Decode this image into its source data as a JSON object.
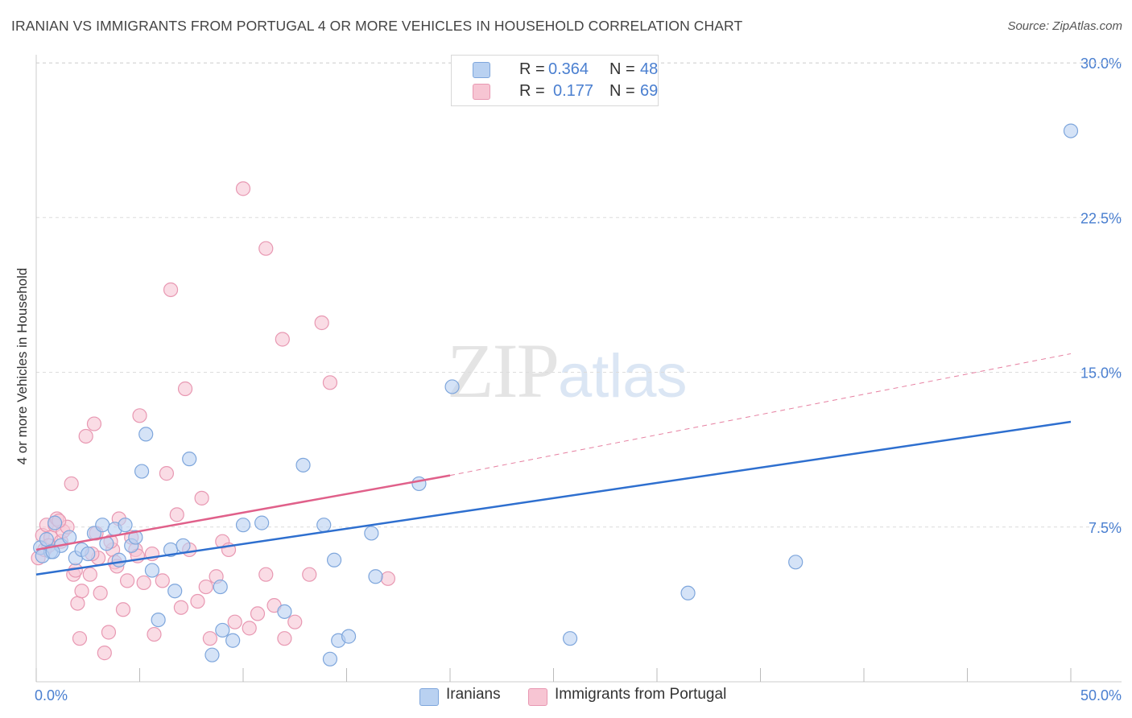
{
  "title": "IRANIAN VS IMMIGRANTS FROM PORTUGAL 4 OR MORE VEHICLES IN HOUSEHOLD CORRELATION CHART",
  "source": "Source: ZipAtlas.com",
  "watermark": {
    "zip": "ZIP",
    "atlas": "atlas"
  },
  "colors": {
    "blue_fill": "#b9d1f1",
    "blue_stroke": "#7ea6dc",
    "blue_line": "#2e6fcf",
    "pink_fill": "#f7c5d3",
    "pink_stroke": "#e898b2",
    "pink_line": "#e0608a",
    "axis_text": "#4a7fd0",
    "grid": "#dcdcdc"
  },
  "legend_top": [
    {
      "r_label": "R =",
      "r_value": "0.364",
      "n_label": "N =",
      "n_value": "48"
    },
    {
      "r_label": "R =",
      "r_value": "0.177",
      "n_label": "N =",
      "n_value": "69"
    }
  ],
  "legend_bottom": [
    {
      "label": "Iranians"
    },
    {
      "label": "Immigrants from Portugal"
    }
  ],
  "chart_data": {
    "type": "scatter",
    "title": "IRANIAN VS IMMIGRANTS FROM PORTUGAL 4 OR MORE VEHICLES IN HOUSEHOLD CORRELATION CHART",
    "xlabel": "",
    "ylabel": "4 or more Vehicles in Household",
    "xlim": [
      0,
      50
    ],
    "ylim": [
      0,
      30
    ],
    "x_tick_labels": [
      "0.0%",
      "50.0%"
    ],
    "y_tick_labels": [
      "7.5%",
      "15.0%",
      "22.5%",
      "30.0%"
    ],
    "y_ticks": [
      7.5,
      15,
      22.5,
      30
    ],
    "x_ticks": [
      0,
      5,
      10,
      15,
      20,
      25,
      30,
      35,
      40,
      45,
      50
    ],
    "grid": true,
    "series": [
      {
        "name": "Iranians",
        "r": 0.364,
        "n": 48,
        "trend": {
          "x0": 0,
          "y0": 5.2,
          "x1": 50,
          "y1": 12.6,
          "style": "solid"
        },
        "points": [
          [
            0.2,
            6.5
          ],
          [
            0.5,
            6.9
          ],
          [
            0.7,
            6.3
          ],
          [
            0.9,
            7.7
          ],
          [
            1.2,
            6.6
          ],
          [
            1.6,
            7.0
          ],
          [
            1.9,
            6.0
          ],
          [
            2.2,
            6.4
          ],
          [
            2.5,
            6.2
          ],
          [
            2.8,
            7.2
          ],
          [
            3.2,
            7.6
          ],
          [
            3.4,
            6.7
          ],
          [
            3.8,
            7.4
          ],
          [
            4.0,
            5.9
          ],
          [
            4.3,
            7.6
          ],
          [
            4.6,
            6.6
          ],
          [
            4.8,
            7.0
          ],
          [
            5.1,
            10.2
          ],
          [
            5.3,
            12.0
          ],
          [
            5.6,
            5.4
          ],
          [
            5.9,
            3.0
          ],
          [
            6.5,
            6.4
          ],
          [
            6.7,
            4.4
          ],
          [
            7.1,
            6.6
          ],
          [
            7.4,
            10.8
          ],
          [
            8.5,
            1.3
          ],
          [
            8.9,
            4.6
          ],
          [
            9.0,
            2.5
          ],
          [
            9.5,
            2.0
          ],
          [
            10.0,
            7.6
          ],
          [
            10.9,
            7.7
          ],
          [
            12.0,
            3.4
          ],
          [
            12.9,
            10.5
          ],
          [
            13.9,
            7.6
          ],
          [
            14.2,
            1.1
          ],
          [
            14.4,
            5.9
          ],
          [
            14.6,
            2.0
          ],
          [
            15.1,
            2.2
          ],
          [
            16.2,
            7.2
          ],
          [
            16.4,
            5.1
          ],
          [
            18.5,
            9.6
          ],
          [
            20.1,
            14.3
          ],
          [
            25.8,
            2.1
          ],
          [
            31.5,
            4.3
          ],
          [
            36.7,
            5.8
          ],
          [
            50.0,
            26.7
          ],
          [
            0.3,
            6.1
          ],
          [
            0.8,
            6.3
          ]
        ]
      },
      {
        "name": "Immigrants from Portugal",
        "r": 0.177,
        "n": 69,
        "trend": {
          "x0": 0,
          "y0": 6.4,
          "x1": 20,
          "y1": 10.0,
          "style": "solid",
          "dashed_to": {
            "x1": 50,
            "y1": 15.9
          }
        },
        "points": [
          [
            0.1,
            6.0
          ],
          [
            0.3,
            7.1
          ],
          [
            0.4,
            6.4
          ],
          [
            0.5,
            7.6
          ],
          [
            0.7,
            7.0
          ],
          [
            0.9,
            7.6
          ],
          [
            1.0,
            7.9
          ],
          [
            1.2,
            6.8
          ],
          [
            1.3,
            7.3
          ],
          [
            1.5,
            7.5
          ],
          [
            1.7,
            9.6
          ],
          [
            1.8,
            5.2
          ],
          [
            1.9,
            5.4
          ],
          [
            2.0,
            3.8
          ],
          [
            2.1,
            2.1
          ],
          [
            2.2,
            4.4
          ],
          [
            2.4,
            11.9
          ],
          [
            2.6,
            5.2
          ],
          [
            2.8,
            12.5
          ],
          [
            2.9,
            7.2
          ],
          [
            3.0,
            6.0
          ],
          [
            3.1,
            4.3
          ],
          [
            3.3,
            1.4
          ],
          [
            3.5,
            2.4
          ],
          [
            3.7,
            6.4
          ],
          [
            3.8,
            5.8
          ],
          [
            3.9,
            5.6
          ],
          [
            4.0,
            7.9
          ],
          [
            4.2,
            3.5
          ],
          [
            4.4,
            4.9
          ],
          [
            4.6,
            7.0
          ],
          [
            4.8,
            6.4
          ],
          [
            5.0,
            12.9
          ],
          [
            5.2,
            4.8
          ],
          [
            5.6,
            6.2
          ],
          [
            5.7,
            2.3
          ],
          [
            6.1,
            4.9
          ],
          [
            6.3,
            10.1
          ],
          [
            6.5,
            19.0
          ],
          [
            6.8,
            8.1
          ],
          [
            7.0,
            3.6
          ],
          [
            7.2,
            14.2
          ],
          [
            7.4,
            6.4
          ],
          [
            7.8,
            3.9
          ],
          [
            8.0,
            8.9
          ],
          [
            8.2,
            4.6
          ],
          [
            8.4,
            2.1
          ],
          [
            8.7,
            5.1
          ],
          [
            9.0,
            6.8
          ],
          [
            9.3,
            6.4
          ],
          [
            9.6,
            2.9
          ],
          [
            10.0,
            23.9
          ],
          [
            10.3,
            2.6
          ],
          [
            10.7,
            3.3
          ],
          [
            11.1,
            5.2
          ],
          [
            11.1,
            21.0
          ],
          [
            11.5,
            3.7
          ],
          [
            11.9,
            16.6
          ],
          [
            12.0,
            2.1
          ],
          [
            12.5,
            2.9
          ],
          [
            13.2,
            5.2
          ],
          [
            13.8,
            17.4
          ],
          [
            14.2,
            14.5
          ],
          [
            17.0,
            5.0
          ],
          [
            0.6,
            6.6
          ],
          [
            1.1,
            7.8
          ],
          [
            2.7,
            6.2
          ],
          [
            3.6,
            6.8
          ],
          [
            4.9,
            6.1
          ]
        ]
      }
    ]
  }
}
